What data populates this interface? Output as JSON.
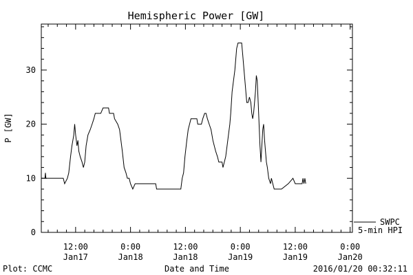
{
  "chart_data": {
    "type": "line",
    "title": "Hemispheric Power [GW]",
    "xlabel": "Date and Time",
    "ylabel": "P [GW]",
    "x_unit": "hours since 2016-01-16 00:00",
    "xlim": [
      4.5,
      72.5
    ],
    "ylim": [
      0,
      38.5
    ],
    "y_ticks": [
      0,
      10,
      20,
      30
    ],
    "x_ticks": [
      {
        "x": 12,
        "line1": "12:00",
        "line2": "Jan17"
      },
      {
        "x": 24,
        "line1": "0:00",
        "line2": "Jan18"
      },
      {
        "x": 36,
        "line1": "12:00",
        "line2": "Jan18"
      },
      {
        "x": 48,
        "line1": "0:00",
        "line2": "Jan19"
      },
      {
        "x": 60,
        "line1": "12:00",
        "line2": "Jan19"
      },
      {
        "x": 72,
        "line1": "0:00",
        "line2": "Jan20"
      }
    ],
    "grid": false,
    "legend_position": "bottom-right-outside",
    "series": [
      {
        "name": "5-min HPI",
        "source": "SWPC",
        "points": [
          [
            4.5,
            10
          ],
          [
            5.3,
            10
          ],
          [
            5.4,
            11
          ],
          [
            5.5,
            10
          ],
          [
            9.3,
            10
          ],
          [
            9.6,
            9
          ],
          [
            10.2,
            10
          ],
          [
            10.5,
            11
          ],
          [
            10.9,
            14
          ],
          [
            11.2,
            16
          ],
          [
            11.6,
            18
          ],
          [
            11.8,
            20
          ],
          [
            12.0,
            18
          ],
          [
            12.3,
            16
          ],
          [
            12.5,
            17
          ],
          [
            12.7,
            15
          ],
          [
            13.0,
            14
          ],
          [
            13.4,
            13
          ],
          [
            13.7,
            12
          ],
          [
            14.0,
            13
          ],
          [
            14.3,
            16
          ],
          [
            14.7,
            18
          ],
          [
            15.2,
            19
          ],
          [
            15.6,
            20
          ],
          [
            16.0,
            21
          ],
          [
            16.3,
            22
          ],
          [
            17.5,
            22
          ],
          [
            18.0,
            23
          ],
          [
            19.2,
            23
          ],
          [
            19.4,
            22
          ],
          [
            20.3,
            22
          ],
          [
            20.5,
            21
          ],
          [
            21.2,
            20
          ],
          [
            21.6,
            19
          ],
          [
            21.9,
            17
          ],
          [
            22.2,
            15
          ],
          [
            22.6,
            12
          ],
          [
            23.0,
            11
          ],
          [
            23.3,
            10
          ],
          [
            23.7,
            10
          ],
          [
            24.0,
            9
          ],
          [
            24.5,
            8
          ],
          [
            25.0,
            9
          ],
          [
            29.5,
            9
          ],
          [
            29.7,
            8
          ],
          [
            35.0,
            8
          ],
          [
            35.3,
            10
          ],
          [
            35.6,
            11
          ],
          [
            35.9,
            14
          ],
          [
            36.3,
            17
          ],
          [
            36.6,
            19
          ],
          [
            36.9,
            20
          ],
          [
            37.2,
            21
          ],
          [
            38.5,
            21
          ],
          [
            38.7,
            20
          ],
          [
            39.5,
            20
          ],
          [
            39.8,
            21
          ],
          [
            40.2,
            22
          ],
          [
            40.5,
            22
          ],
          [
            40.8,
            21
          ],
          [
            41.2,
            20
          ],
          [
            41.6,
            19
          ],
          [
            42.0,
            17
          ],
          [
            42.3,
            16
          ],
          [
            42.6,
            15
          ],
          [
            43.0,
            14
          ],
          [
            43.3,
            13
          ],
          [
            44.0,
            13
          ],
          [
            44.2,
            12
          ],
          [
            44.5,
            13
          ],
          [
            44.8,
            14
          ],
          [
            45.1,
            16
          ],
          [
            45.4,
            18
          ],
          [
            45.7,
            20
          ],
          [
            45.9,
            22
          ],
          [
            46.2,
            26
          ],
          [
            46.5,
            28
          ],
          [
            46.8,
            30
          ],
          [
            47.0,
            32
          ],
          [
            47.2,
            34
          ],
          [
            47.5,
            35
          ],
          [
            48.3,
            35
          ],
          [
            48.5,
            33
          ],
          [
            48.8,
            30
          ],
          [
            49.1,
            27
          ],
          [
            49.4,
            24
          ],
          [
            49.7,
            24
          ],
          [
            50.0,
            25
          ],
          [
            50.3,
            24
          ],
          [
            50.5,
            22
          ],
          [
            50.7,
            21
          ],
          [
            50.9,
            22
          ],
          [
            51.1,
            24
          ],
          [
            51.3,
            26
          ],
          [
            51.5,
            29
          ],
          [
            51.7,
            28
          ],
          [
            51.9,
            24
          ],
          [
            52.1,
            20
          ],
          [
            52.3,
            16
          ],
          [
            52.5,
            13
          ],
          [
            52.7,
            16
          ],
          [
            52.9,
            19
          ],
          [
            53.1,
            20
          ],
          [
            53.3,
            17
          ],
          [
            53.5,
            15
          ],
          [
            53.7,
            13
          ],
          [
            53.9,
            12
          ],
          [
            54.2,
            10
          ],
          [
            54.6,
            9
          ],
          [
            54.8,
            10
          ],
          [
            55.1,
            9
          ],
          [
            55.4,
            8
          ],
          [
            57.0,
            8
          ],
          [
            58.5,
            9
          ],
          [
            59.5,
            10
          ],
          [
            60.0,
            9
          ],
          [
            61.5,
            9
          ],
          [
            61.7,
            10
          ],
          [
            61.9,
            9
          ],
          [
            62.1,
            10
          ],
          [
            62.3,
            9
          ]
        ]
      }
    ]
  },
  "legend": {
    "source_label": "SWPC",
    "series_label": "5-min HPI"
  },
  "footer": {
    "left": "Plot: CCMC",
    "center": "Date and Time",
    "right": "2016/01/20 00:32:11"
  }
}
